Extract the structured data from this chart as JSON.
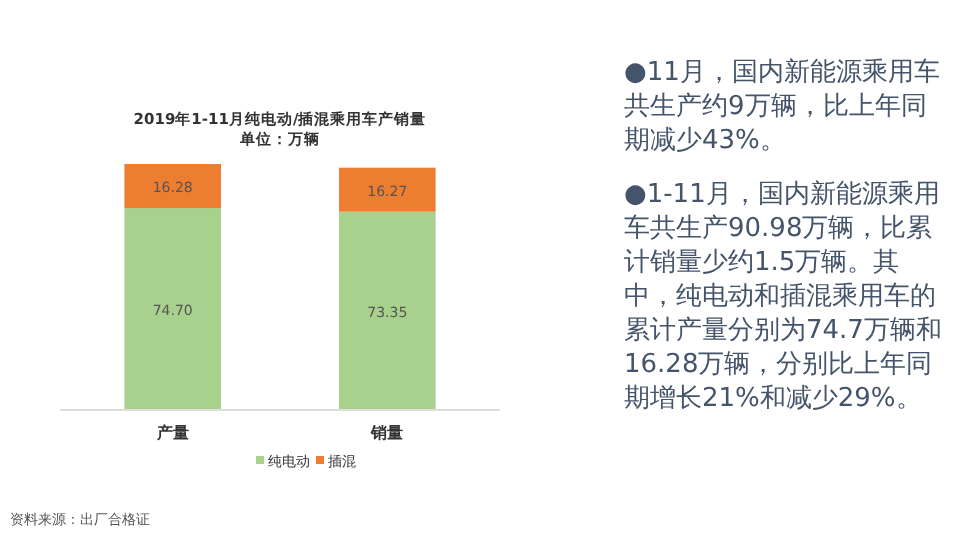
{
  "chart_data": {
    "type": "bar",
    "title": "2019年1-11月纯电动/插混乘用车产销量",
    "subtitle": "单位：万辆",
    "categories": [
      "产量",
      "销量"
    ],
    "stacked": true,
    "legend": "bottom",
    "series": [
      {
        "name": "纯电动",
        "color": "#a9d18e",
        "values": [
          74.7,
          73.35
        ],
        "value_labels": [
          "74.70",
          "73.35"
        ]
      },
      {
        "name": "插混",
        "color": "#ed7d31",
        "values": [
          16.28,
          16.27
        ],
        "value_labels": [
          "16.28",
          "16.27"
        ]
      }
    ],
    "annotations": [
      "●11月，国内新能源乘用车共生产约9万辆，比上年同期减少43%。",
      "●1-11月，国内新能源乘用车共生产90.98万辆，比累计销量少约1.5万辆。其中，纯电动和插混乘用车的累计产量分别为74.7万辆和16.28万辆，分别比上年同期增长21%和减少29%。",
      "资料来源：出厂合格证"
    ]
  }
}
